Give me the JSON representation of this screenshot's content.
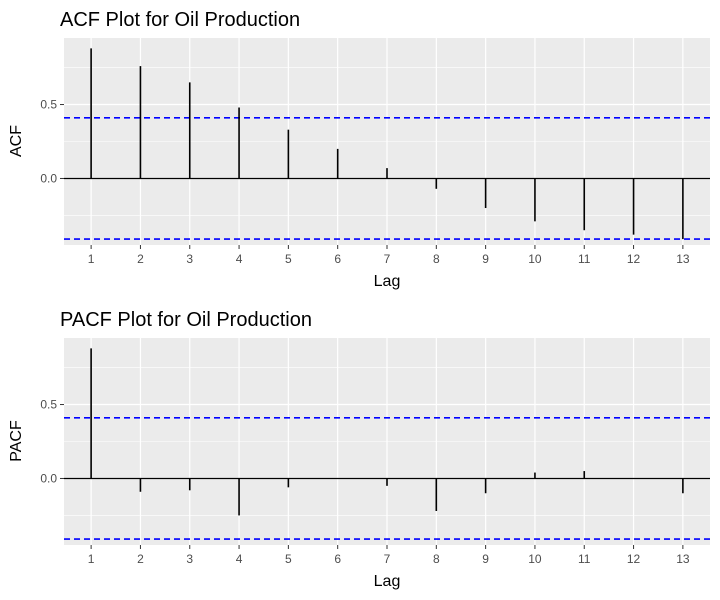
{
  "chart_data": [
    {
      "type": "bar",
      "title": "ACF Plot for Oil Production",
      "xlabel": "Lag",
      "ylabel": "ACF",
      "x": [
        1,
        2,
        3,
        4,
        5,
        6,
        7,
        8,
        9,
        10,
        11,
        12,
        13
      ],
      "values": [
        0.88,
        0.76,
        0.65,
        0.48,
        0.33,
        0.2,
        0.07,
        -0.07,
        -0.2,
        -0.29,
        -0.35,
        -0.38,
        -0.41
      ],
      "confidence_bounds": [
        0.41,
        -0.41
      ],
      "x_ticks": [
        "1",
        "2",
        "3",
        "4",
        "5",
        "6",
        "7",
        "8",
        "9",
        "10",
        "11",
        "12",
        "13"
      ],
      "y_ticks": [
        {
          "value": 0.5,
          "label": "0.5"
        },
        {
          "value": 0.0,
          "label": "0.0"
        }
      ],
      "xlim": [
        0.45,
        13.55
      ],
      "ylim": [
        -0.45,
        0.95
      ],
      "grid": true,
      "colors": {
        "bars": "#000000",
        "bounds": "#0000ff",
        "panel": "#ebebeb",
        "grid": "#ffffff"
      }
    },
    {
      "type": "bar",
      "title": "PACF Plot for Oil Production",
      "xlabel": "Lag",
      "ylabel": "PACF",
      "x": [
        1,
        2,
        3,
        4,
        5,
        6,
        7,
        8,
        9,
        10,
        11,
        12,
        13
      ],
      "values": [
        0.88,
        -0.09,
        -0.08,
        -0.25,
        -0.06,
        0.0,
        -0.05,
        -0.22,
        -0.1,
        0.04,
        0.05,
        0.0,
        -0.1
      ],
      "confidence_bounds": [
        0.41,
        -0.41
      ],
      "x_ticks": [
        "1",
        "2",
        "3",
        "4",
        "5",
        "6",
        "7",
        "8",
        "9",
        "10",
        "11",
        "12",
        "13"
      ],
      "y_ticks": [
        {
          "value": 0.5,
          "label": "0.5"
        },
        {
          "value": 0.0,
          "label": "0.0"
        }
      ],
      "xlim": [
        0.45,
        13.55
      ],
      "ylim": [
        -0.45,
        0.95
      ],
      "grid": true,
      "colors": {
        "bars": "#000000",
        "bounds": "#0000ff",
        "panel": "#ebebeb",
        "grid": "#ffffff"
      }
    }
  ]
}
